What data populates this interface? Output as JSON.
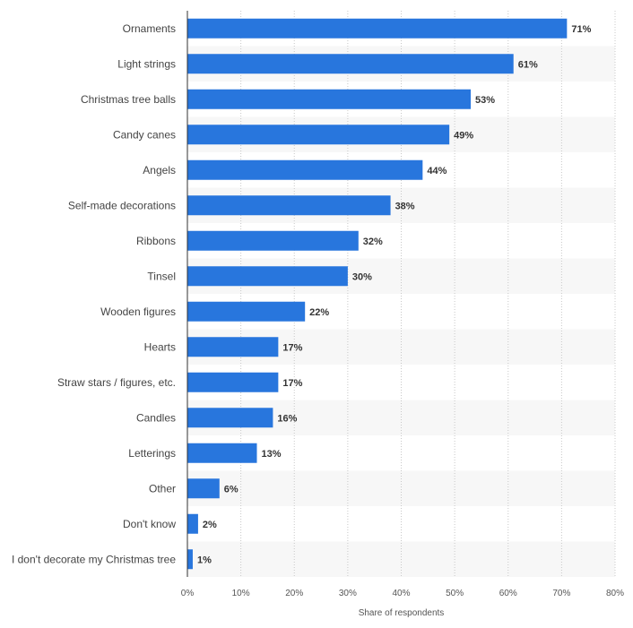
{
  "chart_data": {
    "type": "bar",
    "orientation": "horizontal",
    "title": "",
    "xlabel": "Share of respondents",
    "ylabel": "",
    "xlim": [
      0,
      80
    ],
    "ticks": [
      0,
      10,
      20,
      30,
      40,
      50,
      60,
      70,
      80
    ],
    "tick_labels": [
      "0%",
      "10%",
      "20%",
      "30%",
      "40%",
      "50%",
      "60%",
      "70%",
      "80%"
    ],
    "grid": true,
    "categories": [
      "Ornaments",
      "Light strings",
      "Christmas tree balls",
      "Candy canes",
      "Angels",
      "Self-made decorations",
      "Ribbons",
      "Tinsel",
      "Wooden figures",
      "Hearts",
      "Straw stars / figures, etc.",
      "Candles",
      "Letterings",
      "Other",
      "Don't know",
      "I don't decorate my Christmas tree"
    ],
    "values": [
      71,
      61,
      53,
      49,
      44,
      38,
      32,
      30,
      22,
      17,
      17,
      16,
      13,
      6,
      2,
      1
    ],
    "value_labels": [
      "71%",
      "61%",
      "53%",
      "49%",
      "44%",
      "38%",
      "32%",
      "30%",
      "22%",
      "17%",
      "17%",
      "16%",
      "13%",
      "6%",
      "2%",
      "1%"
    ],
    "colors": {
      "bar": "#2876dd",
      "stripe": "#f7f7f7",
      "axis": "#333333",
      "grid": "#c8c8c8"
    }
  }
}
